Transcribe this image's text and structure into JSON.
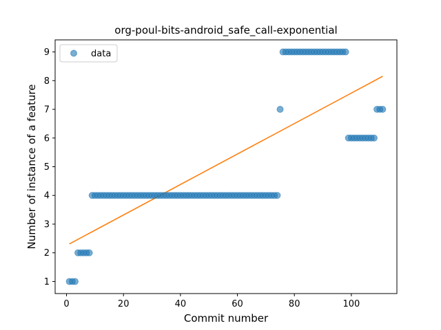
{
  "chart_data": {
    "type": "scatter",
    "title": "org-poul-bits-android_safe_call-exponential",
    "xlabel": "Commit number",
    "ylabel": "Number of instance of a feature",
    "xlim": [
      -4,
      116
    ],
    "ylim": [
      0.58,
      9.42
    ],
    "xticks": [
      0,
      20,
      40,
      60,
      80,
      100
    ],
    "yticks": [
      1,
      2,
      3,
      4,
      5,
      6,
      7,
      8,
      9
    ],
    "grid": false,
    "legend": {
      "position": "top-left",
      "entries": [
        "data"
      ]
    },
    "colors": {
      "data": "#1f77b4",
      "fit": "#ff7f0e"
    },
    "series": [
      {
        "name": "data",
        "kind": "scatter",
        "points": [
          [
            1,
            1
          ],
          [
            2,
            1
          ],
          [
            3,
            1
          ],
          [
            4,
            2
          ],
          [
            5,
            2
          ],
          [
            6,
            2
          ],
          [
            7,
            2
          ],
          [
            8,
            2
          ],
          [
            9,
            4
          ],
          [
            10,
            4
          ],
          [
            11,
            4
          ],
          [
            12,
            4
          ],
          [
            13,
            4
          ],
          [
            14,
            4
          ],
          [
            15,
            4
          ],
          [
            16,
            4
          ],
          [
            17,
            4
          ],
          [
            18,
            4
          ],
          [
            19,
            4
          ],
          [
            20,
            4
          ],
          [
            21,
            4
          ],
          [
            22,
            4
          ],
          [
            23,
            4
          ],
          [
            24,
            4
          ],
          [
            25,
            4
          ],
          [
            26,
            4
          ],
          [
            27,
            4
          ],
          [
            28,
            4
          ],
          [
            29,
            4
          ],
          [
            30,
            4
          ],
          [
            31,
            4
          ],
          [
            32,
            4
          ],
          [
            33,
            4
          ],
          [
            34,
            4
          ],
          [
            35,
            4
          ],
          [
            36,
            4
          ],
          [
            37,
            4
          ],
          [
            38,
            4
          ],
          [
            39,
            4
          ],
          [
            40,
            4
          ],
          [
            41,
            4
          ],
          [
            42,
            4
          ],
          [
            43,
            4
          ],
          [
            44,
            4
          ],
          [
            45,
            4
          ],
          [
            46,
            4
          ],
          [
            47,
            4
          ],
          [
            48,
            4
          ],
          [
            49,
            4
          ],
          [
            50,
            4
          ],
          [
            51,
            4
          ],
          [
            52,
            4
          ],
          [
            53,
            4
          ],
          [
            54,
            4
          ],
          [
            55,
            4
          ],
          [
            56,
            4
          ],
          [
            57,
            4
          ],
          [
            58,
            4
          ],
          [
            59,
            4
          ],
          [
            60,
            4
          ],
          [
            61,
            4
          ],
          [
            62,
            4
          ],
          [
            63,
            4
          ],
          [
            64,
            4
          ],
          [
            65,
            4
          ],
          [
            66,
            4
          ],
          [
            67,
            4
          ],
          [
            68,
            4
          ],
          [
            69,
            4
          ],
          [
            70,
            4
          ],
          [
            71,
            4
          ],
          [
            72,
            4
          ],
          [
            73,
            4
          ],
          [
            74,
            4
          ],
          [
            75,
            7
          ],
          [
            76,
            9
          ],
          [
            77,
            9
          ],
          [
            78,
            9
          ],
          [
            79,
            9
          ],
          [
            80,
            9
          ],
          [
            81,
            9
          ],
          [
            82,
            9
          ],
          [
            83,
            9
          ],
          [
            84,
            9
          ],
          [
            85,
            9
          ],
          [
            86,
            9
          ],
          [
            87,
            9
          ],
          [
            88,
            9
          ],
          [
            89,
            9
          ],
          [
            90,
            9
          ],
          [
            91,
            9
          ],
          [
            92,
            9
          ],
          [
            93,
            9
          ],
          [
            94,
            9
          ],
          [
            95,
            9
          ],
          [
            96,
            9
          ],
          [
            97,
            9
          ],
          [
            98,
            9
          ],
          [
            99,
            6
          ],
          [
            100,
            6
          ],
          [
            101,
            6
          ],
          [
            102,
            6
          ],
          [
            103,
            6
          ],
          [
            104,
            6
          ],
          [
            105,
            6
          ],
          [
            106,
            6
          ],
          [
            107,
            6
          ],
          [
            108,
            6
          ],
          [
            109,
            7
          ],
          [
            110,
            7
          ],
          [
            111,
            7
          ]
        ]
      },
      {
        "name": "",
        "kind": "line",
        "points": [
          [
            1,
            2.31
          ],
          [
            111,
            8.15
          ]
        ]
      }
    ]
  }
}
